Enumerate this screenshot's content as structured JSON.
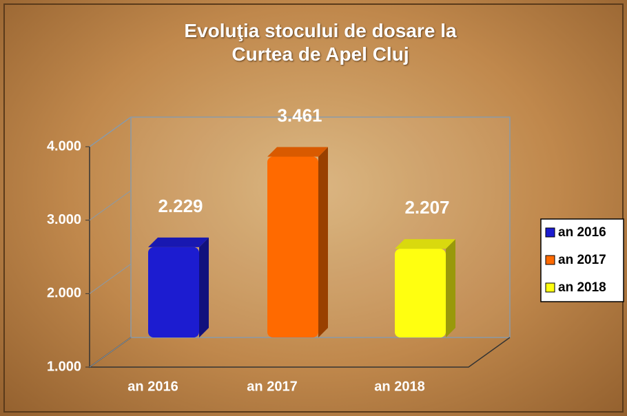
{
  "chart_data": {
    "type": "bar3d",
    "title": "Evoluţia stocului de dosare la Curtea de Apel Cluj",
    "categories": [
      "an 2016",
      "an 2017",
      "an 2018"
    ],
    "values": [
      2229,
      3461,
      2207
    ],
    "value_labels": [
      "2.229",
      "3.461",
      "2.207"
    ],
    "colors": [
      "#1c1cd0",
      "#ff6a00",
      "#ffff10"
    ],
    "ylim": [
      1000,
      4000
    ],
    "yticks": [
      {
        "value": 1000,
        "label": "1.000"
      },
      {
        "value": 2000,
        "label": "2.000"
      },
      {
        "value": 3000,
        "label": "3.000"
      },
      {
        "value": 4000,
        "label": "4.000"
      }
    ],
    "legend": "right"
  }
}
